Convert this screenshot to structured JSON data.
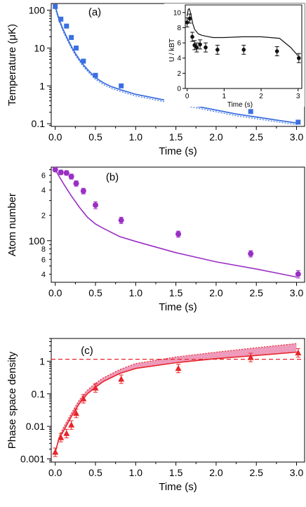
{
  "colors": {
    "blue": "#3a6fe0",
    "purple": "#9a2fc4",
    "red": "#e8242a",
    "pink": "#e879a6",
    "black": "#111111"
  },
  "panels": [
    {
      "id": "a",
      "label": "(a)",
      "ylabel": "Temperature (μK)",
      "xlabel": "Time (s)",
      "yscale": "log",
      "ylim": [
        0.085,
        150
      ],
      "xlim": [
        -0.05,
        3.1
      ],
      "xticks": [
        "0.0",
        "0.5",
        "1.0",
        "1.5",
        "2.0",
        "2.5",
        "3.0"
      ],
      "yticks": [
        {
          "v": 0.1,
          "t": "0.1"
        },
        {
          "v": 1,
          "t": "1"
        },
        {
          "v": 10,
          "t": "10"
        },
        {
          "v": 100,
          "t": "100"
        }
      ]
    },
    {
      "id": "b",
      "label": "(b)",
      "ylabel": "Atom number",
      "xlabel": "Time (s)",
      "yscale": "log",
      "ylim": [
        32,
        750
      ],
      "xlim": [
        -0.05,
        3.1
      ],
      "xticks": [
        "0.0",
        "0.5",
        "1.0",
        "1.5",
        "2.0",
        "2.5",
        "3.0"
      ],
      "yticks": [
        {
          "v": 100,
          "t": "100"
        }
      ],
      "yminor": [
        {
          "v": 40,
          "t": "4"
        },
        {
          "v": 60,
          "t": "6"
        },
        {
          "v": 80,
          "t": "8"
        },
        {
          "v": 200,
          "t": "2"
        },
        {
          "v": 400,
          "t": "4"
        },
        {
          "v": 600,
          "t": "6"
        }
      ]
    },
    {
      "id": "c",
      "label": "(c)",
      "ylabel": "Phase space density",
      "xlabel": "Time (s)",
      "yscale": "log",
      "ylim": [
        0.0008,
        5
      ],
      "xlim": [
        -0.05,
        3.1
      ],
      "xticks": [
        "0.0",
        "0.5",
        "1.0",
        "1.5",
        "2.0",
        "2.5",
        "3.0"
      ],
      "yticks": [
        {
          "v": 0.001,
          "t": "0.001"
        },
        {
          "v": 0.01,
          "t": "0.01"
        },
        {
          "v": 0.1,
          "t": "0.1"
        },
        {
          "v": 1,
          "t": "1"
        }
      ]
    }
  ],
  "inset": {
    "ylabel": "U / kBT",
    "xlabel": "Time (s)",
    "ylim": [
      0,
      11
    ],
    "xlim": [
      -0.05,
      3.1
    ],
    "xticks": [
      "0",
      "1",
      "2",
      "3"
    ],
    "yticks": [
      "0",
      "2",
      "4",
      "6",
      "8",
      "10"
    ]
  },
  "chart_data": [
    {
      "type": "scatter",
      "panel": "a",
      "yscale": "log",
      "title": "",
      "x": [
        0.0,
        0.07,
        0.14,
        0.2,
        0.26,
        0.35,
        0.5,
        0.82,
        1.53,
        2.43,
        3.02
      ],
      "y": [
        125,
        58,
        38,
        19,
        10,
        4.5,
        1.9,
        1.0,
        0.42,
        0.21,
        0.11
      ],
      "line_x": [
        0.0,
        0.05,
        0.1,
        0.15,
        0.2,
        0.25,
        0.3,
        0.35,
        0.4,
        0.5,
        0.6,
        0.7,
        0.82,
        1.0,
        1.25,
        1.5,
        1.75,
        2.0,
        2.25,
        2.5,
        2.75,
        3.0
      ],
      "line_y": [
        125,
        55,
        30,
        18,
        11,
        7.2,
        5.0,
        3.6,
        2.7,
        1.65,
        1.2,
        0.95,
        0.78,
        0.6,
        0.47,
        0.37,
        0.29,
        0.23,
        0.18,
        0.15,
        0.125,
        0.105
      ],
      "band_factor": 0.9
    },
    {
      "type": "scatter",
      "panel": "b",
      "yscale": "log",
      "x": [
        0.0,
        0.07,
        0.14,
        0.2,
        0.26,
        0.35,
        0.5,
        0.82,
        1.53,
        2.43,
        3.02
      ],
      "y": [
        700,
        650,
        640,
        580,
        480,
        390,
        265,
        175,
        120,
        70,
        40
      ],
      "yerr": [
        40,
        40,
        40,
        40,
        35,
        30,
        25,
        15,
        10,
        6,
        4
      ],
      "line_x": [
        0.0,
        0.1,
        0.2,
        0.3,
        0.4,
        0.5,
        0.6,
        0.8,
        1.0,
        1.5,
        2.0,
        2.5,
        3.0
      ],
      "line_y": [
        700,
        480,
        340,
        250,
        190,
        158,
        140,
        112,
        98,
        72,
        56,
        46,
        37
      ]
    },
    {
      "type": "scatter",
      "panel": "c",
      "yscale": "log",
      "x": [
        0.0,
        0.07,
        0.14,
        0.2,
        0.26,
        0.35,
        0.5,
        0.82,
        1.53,
        2.43,
        3.02
      ],
      "y": [
        0.0016,
        0.0045,
        0.006,
        0.011,
        0.025,
        0.07,
        0.15,
        0.28,
        0.6,
        1.3,
        1.8
      ],
      "line_x": [
        0.0,
        0.05,
        0.1,
        0.2,
        0.3,
        0.4,
        0.5,
        0.6,
        0.8,
        1.0,
        1.5,
        2.0,
        2.5,
        3.0
      ],
      "line_y": [
        0.0016,
        0.0045,
        0.007,
        0.02,
        0.05,
        0.1,
        0.16,
        0.24,
        0.42,
        0.6,
        0.9,
        1.2,
        1.5,
        1.9
      ],
      "line_upper": [
        0.0016,
        0.005,
        0.009,
        0.025,
        0.065,
        0.13,
        0.21,
        0.31,
        0.55,
        0.85,
        1.35,
        1.9,
        2.6,
        3.5
      ],
      "hline": 1.15
    },
    {
      "type": "scatter",
      "panel": "inset",
      "x": [
        0.0,
        0.07,
        0.14,
        0.2,
        0.26,
        0.35,
        0.5,
        0.82,
        1.53,
        2.43,
        3.02
      ],
      "y": [
        8.7,
        9.2,
        6.8,
        5.7,
        5.4,
        5.8,
        5.4,
        5.1,
        5.1,
        4.9,
        4.0
      ],
      "line_x": [
        0.0,
        0.03,
        0.06,
        0.1,
        0.15,
        0.2,
        0.3,
        0.4,
        0.5,
        0.7,
        1.0,
        1.5,
        2.0,
        2.5,
        2.8,
        3.0
      ],
      "line_y": [
        9.5,
        10.4,
        10.5,
        9.8,
        8.6,
        7.8,
        7.2,
        7.0,
        6.9,
        6.7,
        6.7,
        6.8,
        6.8,
        6.6,
        5.4,
        4.3
      ]
    }
  ]
}
